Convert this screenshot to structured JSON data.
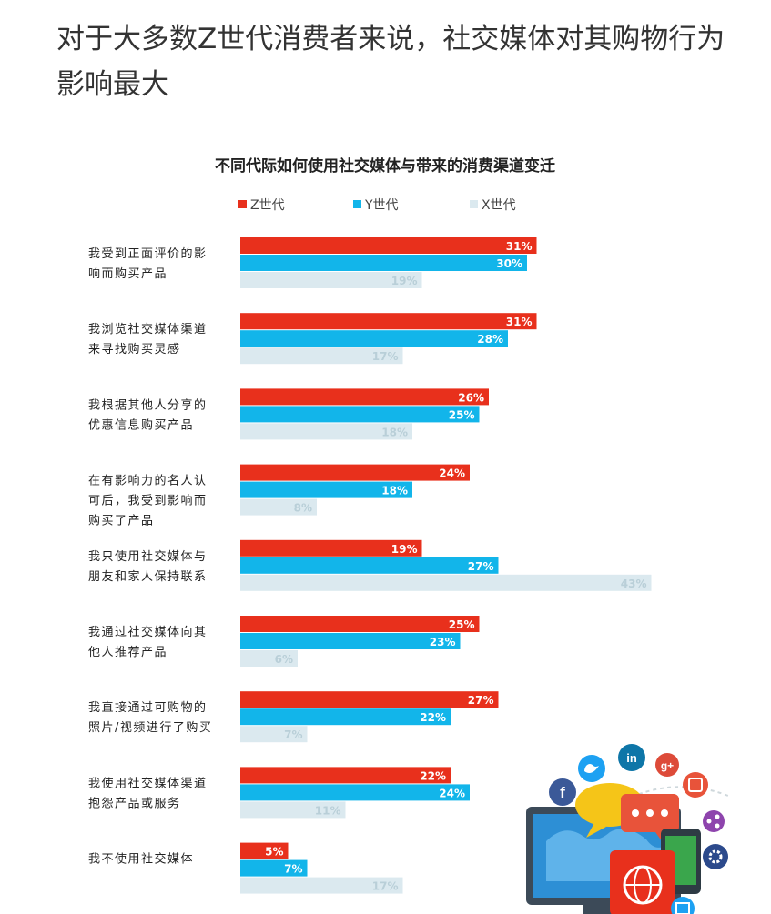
{
  "headline": "对于大多数Z世代消费者来说，社交媒体对其购物行为影响最大",
  "chart_data": {
    "type": "bar",
    "orientation": "horizontal",
    "title": "不同代际如何使用社交媒体与带来的消费渠道变迁",
    "legend_position": "top",
    "categories": [
      [
        "我受到正面评价的影",
        "响而购买产品"
      ],
      [
        "我浏览社交媒体渠道",
        "来寻找购买灵感"
      ],
      [
        "我根据其他人分享的",
        "优惠信息购买产品"
      ],
      [
        "在有影响力的名人认",
        "可后，我受到影响而",
        "购买了产品"
      ],
      [
        "我只使用社交媒体与",
        "朋友和家人保持联系"
      ],
      [
        "我通过社交媒体向其",
        "他人推荐产品"
      ],
      [
        "我直接通过可购物的",
        "照片/视频进行了购买"
      ],
      [
        "我使用社交媒体渠道",
        "抱怨产品或服务"
      ],
      [
        "我不使用社交媒体"
      ]
    ],
    "series": [
      {
        "name": "Z世代",
        "color": "#e8301c",
        "values": [
          31,
          31,
          26,
          24,
          19,
          25,
          27,
          22,
          5
        ]
      },
      {
        "name": "Y世代",
        "color": "#12b5ea",
        "values": [
          30,
          28,
          25,
          18,
          27,
          23,
          22,
          24,
          7
        ]
      },
      {
        "name": "X世代",
        "color": "#dbe9ef",
        "values": [
          19,
          17,
          18,
          8,
          43,
          6,
          7,
          11,
          17
        ]
      }
    ],
    "value_suffix": "%",
    "grid": false
  },
  "decoration": {
    "icons": [
      "facebook-icon",
      "twitter-icon",
      "linkedin-icon",
      "google-plus-icon",
      "share-icon",
      "settings-icon",
      "chat-icon",
      "globe-icon",
      "map-icon",
      "video-icon"
    ],
    "brand_letters": {
      "facebook": "f",
      "linkedin": "in",
      "google_plus": "g+"
    },
    "colors": {
      "facebook": "#3b5998",
      "twitter": "#1da1f2",
      "linkedin": "#0e76a8",
      "google_plus": "#dd4b39",
      "purple": "#8e44ad",
      "orange": "#e8533a",
      "navy": "#2c4a8c",
      "yellow": "#f5c518",
      "green": "#3aa64c"
    }
  }
}
